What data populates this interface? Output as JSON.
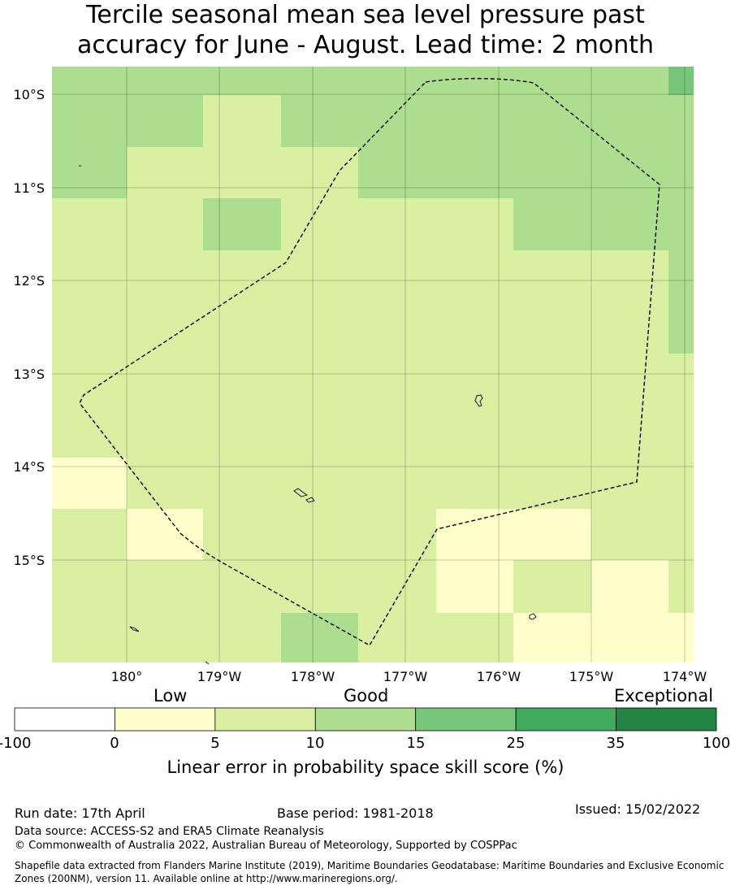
{
  "title": {
    "line1": "Tercile seasonal mean sea level pressure past",
    "line2": "accuracy for June - August. Lead time: 2 month"
  },
  "map": {
    "lat_labels": [
      "10°S",
      "11°S",
      "12°S",
      "13°S",
      "14°S",
      "15°S"
    ],
    "lon_labels": [
      "180°",
      "179°W",
      "178°W",
      "177°W",
      "176°W",
      "175°W",
      "174°W"
    ],
    "grid": true
  },
  "colorbar": {
    "categories": [
      "Low",
      "Good",
      "Exceptional"
    ],
    "ticks": [
      "-100",
      "0",
      "5",
      "10",
      "15",
      "25",
      "35",
      "100"
    ],
    "colors": [
      "#ffffff",
      "#ffffcc",
      "#d9f0a3",
      "#addd8e",
      "#78c679",
      "#41ab5d",
      "#238443"
    ],
    "label": "Linear error in probability space skill score (%)"
  },
  "footer": {
    "run_date": "Run date: 17th April",
    "base_period": "Base period: 1981-2018",
    "issued": "Issued: 15/02/2022",
    "data_source": "Data source: ACCESS-S2 and ERA5 Climate Reanalysis",
    "copyright": "© Commonwealth of Australia 2022, Australian Bureau of Meteorology, Supported by COSPPac",
    "shapefile": "Shapefile data extracted from Flanders Marine Institute (2019), Maritime Boundaries Geodatabase: Maritime Boundaries and Exclusive Economic Zones (200NM), version 11. Available online at http://www.marineregions.org/."
  }
}
